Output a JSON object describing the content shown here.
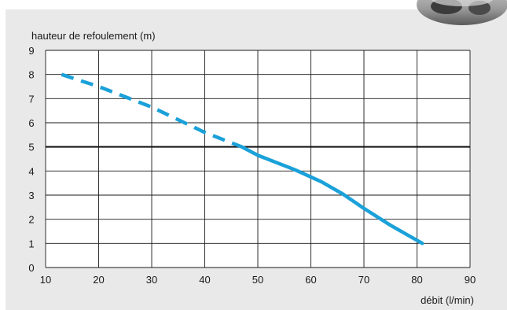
{
  "chart_data": {
    "type": "line",
    "title": "",
    "xlabel": "débit (l/min)",
    "ylabel": "hauteur de refoulement (m)",
    "xlim": [
      10,
      90
    ],
    "ylim": [
      0,
      9
    ],
    "x_ticks": [
      10,
      20,
      30,
      40,
      50,
      60,
      70,
      80,
      90
    ],
    "y_ticks": [
      0,
      1,
      2,
      3,
      4,
      5,
      6,
      7,
      8,
      9
    ],
    "grid": true,
    "reference_line": {
      "y": 5
    },
    "series": [
      {
        "style": "dashed",
        "color": "#1ba1d9",
        "x": [
          13,
          20,
          30,
          40,
          47
        ],
        "y": [
          8.0,
          7.5,
          6.65,
          5.6,
          5.0
        ]
      },
      {
        "style": "solid",
        "color": "#1ba1d9",
        "x": [
          47,
          50,
          57,
          62,
          66,
          70,
          75,
          81
        ],
        "y": [
          5.0,
          4.65,
          4.05,
          3.55,
          3.05,
          2.45,
          1.75,
          1.0
        ]
      }
    ]
  }
}
